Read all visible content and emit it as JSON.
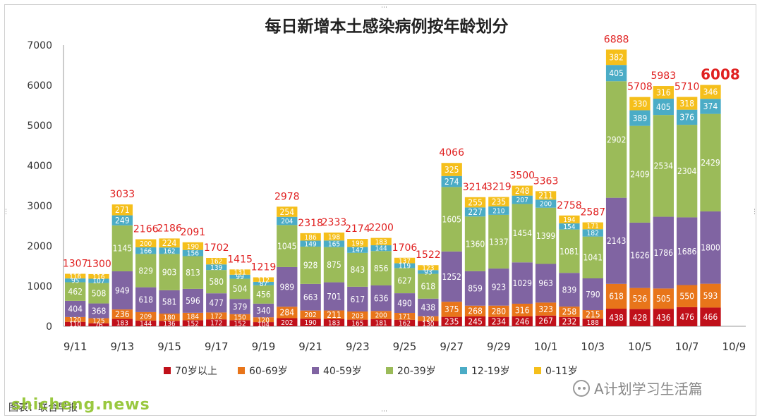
{
  "chart_data": {
    "type": "bar",
    "stacked": true,
    "title": "每日新增本土感染病例按年龄划分",
    "ylim": [
      0,
      7000
    ],
    "yticks": [
      0,
      1000,
      2000,
      3000,
      4000,
      5000,
      6000,
      7000
    ],
    "categories": [
      "9/11",
      "9/12",
      "9/13",
      "9/14",
      "9/15",
      "9/16",
      "9/17",
      "9/18",
      "9/19",
      "9/20",
      "9/21",
      "9/22",
      "9/23",
      "9/24",
      "9/25",
      "9/26",
      "9/27",
      "9/28",
      "9/29",
      "9/30",
      "10/1",
      "10/2",
      "10/3",
      "10/4",
      "10/5",
      "10/6",
      "10/7",
      "10/8",
      "10/9"
    ],
    "x_tick_labels": [
      "9/11",
      "",
      "9/13",
      "",
      "9/15",
      "",
      "9/17",
      "",
      "9/19",
      "",
      "9/21",
      "",
      "9/23",
      "",
      "9/25",
      "",
      "9/27",
      "",
      "9/29",
      "",
      "10/1",
      "",
      "10/3",
      "",
      "10/5",
      "",
      "10/7",
      "",
      "10/9"
    ],
    "series": [
      {
        "name": "70岁以上",
        "color": "#c0101a",
        "values": [
          110,
          76,
          183,
          144,
          136,
          152,
          172,
          152,
          104,
          202,
          190,
          183,
          165,
          181,
          162,
          130,
          235,
          245,
          234,
          246,
          267,
          232,
          188,
          438,
          428,
          436,
          476,
          466,
          null
        ]
      },
      {
        "name": "60-69岁",
        "color": "#e8751a",
        "values": [
          120,
          125,
          236,
          209,
          180,
          184,
          172,
          150,
          120,
          284,
          202,
          211,
          203,
          200,
          171,
          120,
          375,
          268,
          280,
          316,
          323,
          258,
          215,
          618,
          526,
          505,
          550,
          593,
          null
        ]
      },
      {
        "name": "40-59岁",
        "color": "#8064a2",
        "values": [
          404,
          368,
          949,
          618,
          581,
          596,
          477,
          379,
          340,
          989,
          663,
          701,
          617,
          636,
          490,
          438,
          1252,
          859,
          923,
          1029,
          963,
          839,
          790,
          2143,
          1626,
          1786,
          1686,
          1800,
          null
        ]
      },
      {
        "name": "20-39岁",
        "color": "#9bbb59",
        "values": [
          462,
          508,
          1145,
          829,
          903,
          813,
          580,
          504,
          456,
          1045,
          928,
          875,
          843,
          856,
          627,
          618,
          1605,
          1360,
          1337,
          1454,
          1399,
          1081,
          1041,
          2902,
          2409,
          2534,
          2304,
          2429,
          null
        ]
      },
      {
        "name": "12-19岁",
        "color": "#4bacc6",
        "values": [
          95,
          107,
          249,
          166,
          162,
          156,
          139,
          99,
          87,
          204,
          149,
          165,
          147,
          144,
          119,
          93,
          274,
          227,
          210,
          207,
          200,
          154,
          182,
          405,
          389,
          405,
          376,
          374,
          null
        ]
      },
      {
        "name": "0-11岁",
        "color": "#f5bf1b",
        "values": [
          116,
          116,
          271,
          200,
          224,
          190,
          162,
          131,
          112,
          254,
          186,
          198,
          199,
          183,
          137,
          123,
          325,
          255,
          235,
          248,
          211,
          194,
          171,
          382,
          330,
          316,
          318,
          346,
          null
        ]
      }
    ],
    "totals": [
      1307,
      1300,
      3033,
      2166,
      2186,
      2091,
      1702,
      1415,
      1219,
      2978,
      2318,
      2333,
      2174,
      2200,
      1706,
      1522,
      4066,
      3214,
      3219,
      3500,
      3363,
      2758,
      2587,
      6888,
      5708,
      5983,
      5710,
      6008,
      null
    ],
    "highlight_total_index": 27,
    "legend_position": "bottom",
    "grid": false
  },
  "footer": {
    "source_text": "图表：联合早报",
    "site_watermark": "shicheng.news",
    "wechat_watermark": "A计划学习生活篇"
  }
}
